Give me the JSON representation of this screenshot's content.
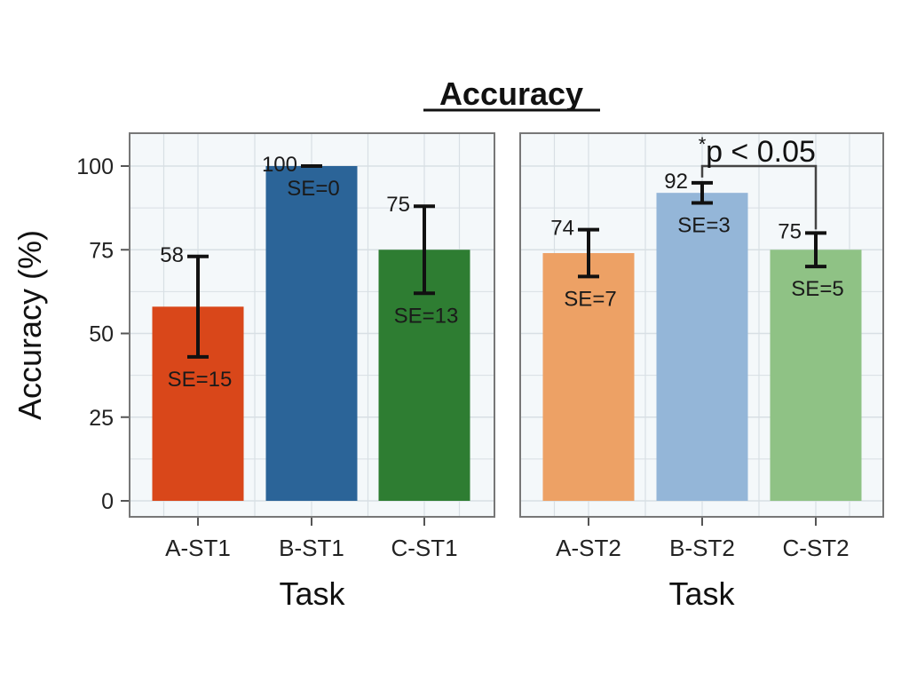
{
  "chart_data": {
    "type": "bar",
    "title": "Accuracy",
    "ylabel": "Accuracy (%)",
    "ylim": [
      0,
      110
    ],
    "yticks": [
      0,
      25,
      50,
      75,
      100
    ],
    "grid": true,
    "colors": {
      "A-ST1": "#d9471a",
      "B-ST1": "#2b6498",
      "C-ST1": "#2e7d32",
      "A-ST2": "#eda165",
      "B-ST2": "#94b6d8",
      "C-ST2": "#8fc285",
      "panel_bg": "#f4f8fa",
      "grid": "#d8dfe4",
      "panel_border": "#777777"
    },
    "panels": [
      {
        "xlabel": "Task",
        "categories": [
          "A-ST1",
          "B-ST1",
          "C-ST1"
        ],
        "values": [
          58,
          100,
          75
        ],
        "value_labels": [
          "58",
          "100",
          "75"
        ],
        "se": [
          15,
          0,
          13
        ],
        "se_labels": [
          "SE=15",
          "SE=0",
          "SE=13"
        ]
      },
      {
        "xlabel": "Task",
        "categories": [
          "A-ST2",
          "B-ST2",
          "C-ST2"
        ],
        "values": [
          74,
          92,
          75
        ],
        "value_labels": [
          "74",
          "92",
          "75"
        ],
        "se": [
          7,
          3,
          5
        ],
        "se_labels": [
          "SE=7",
          "SE=3",
          "SE=5"
        ],
        "significance": {
          "between": [
            "B-ST2",
            "C-ST2"
          ],
          "label": "p < 0.05",
          "marker": "*"
        }
      }
    ]
  }
}
